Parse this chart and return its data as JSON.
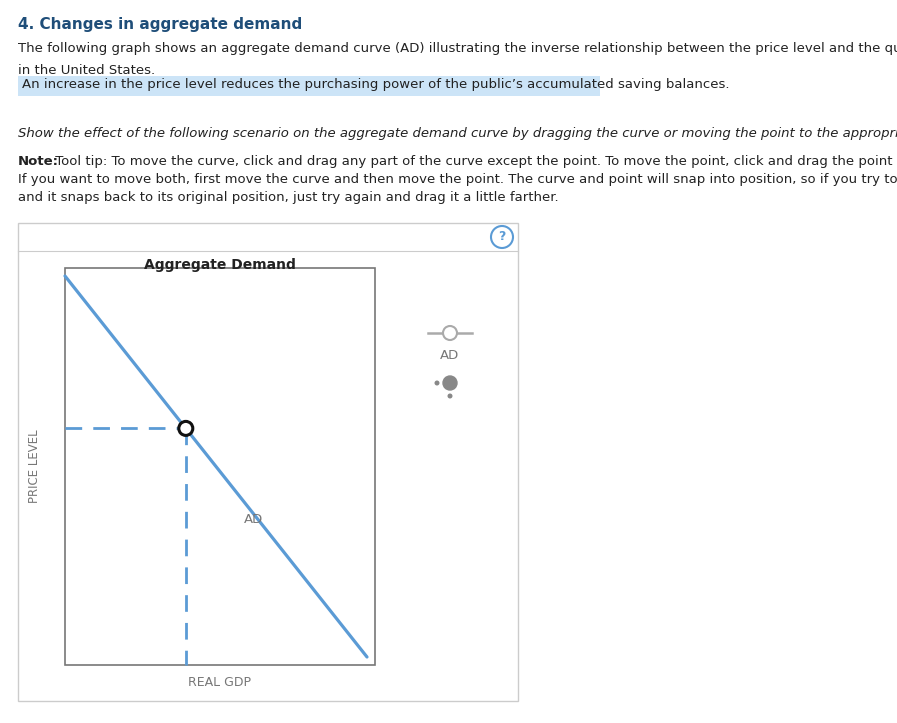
{
  "title": "4. Changes in aggregate demand",
  "paragraph1a": "The following graph shows an aggregate demand curve (AD) illustrating the inverse relationship between the price level and the quantity of Real GDP",
  "paragraph1b": "in the United States.",
  "highlight_text": "An increase in the price level reduces the purchasing power of the public’s accumulated saving balances.",
  "italic_text": "Show the effect of the following scenario on the aggregate demand curve by dragging the curve or moving the point to the appropriate position.",
  "note_line1": "Note: Tool tip: To move the curve, click and drag any part of the curve except the point. To move the point, click and drag the point along the curve.",
  "note_line2": "If you want to move both, first move the curve and then move the point. The curve and point will snap into position, so if you try to move one of them",
  "note_line3": "and it snaps back to its original position, just try again and drag it a little farther.",
  "graph_title": "Aggregate Demand",
  "xlabel": "REAL GDP",
  "ylabel": "PRICE LEVEL",
  "line_color": "#5b9bd5",
  "dashed_color": "#5b9bd5",
  "highlight_bg": "#cce4f7",
  "title_color": "#1f4e79",
  "graph_border_color": "#cccccc",
  "bg_color": "#ffffff",
  "slider_line_color": "#aaaaaa",
  "slider_dot_color": "#888888",
  "question_circle_color": "#5b9bd5",
  "text_color": "#222222",
  "axis_color": "#777777"
}
